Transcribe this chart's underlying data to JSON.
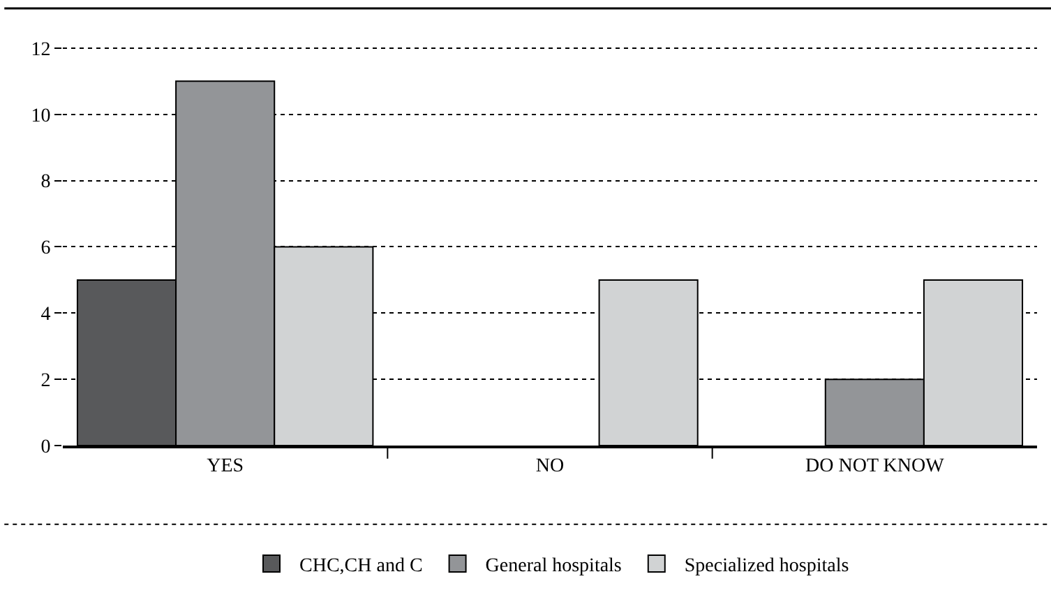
{
  "chart_data": {
    "type": "bar",
    "categories": [
      "YES",
      "NO",
      "DO NOT KNOW"
    ],
    "series": [
      {
        "name": "CHC,CH and C",
        "color": "#58595b",
        "values": [
          5,
          0,
          0
        ]
      },
      {
        "name": "General hospitals",
        "color": "#939598",
        "values": [
          11,
          0,
          2
        ]
      },
      {
        "name": "Specialized hospitals",
        "color": "#d1d3d4",
        "values": [
          6,
          5,
          5
        ]
      }
    ],
    "ylim": [
      0,
      13.2
    ],
    "yticks": [
      0,
      2,
      4,
      6,
      8,
      10,
      12
    ],
    "grid": "y",
    "legend": "bottom"
  }
}
